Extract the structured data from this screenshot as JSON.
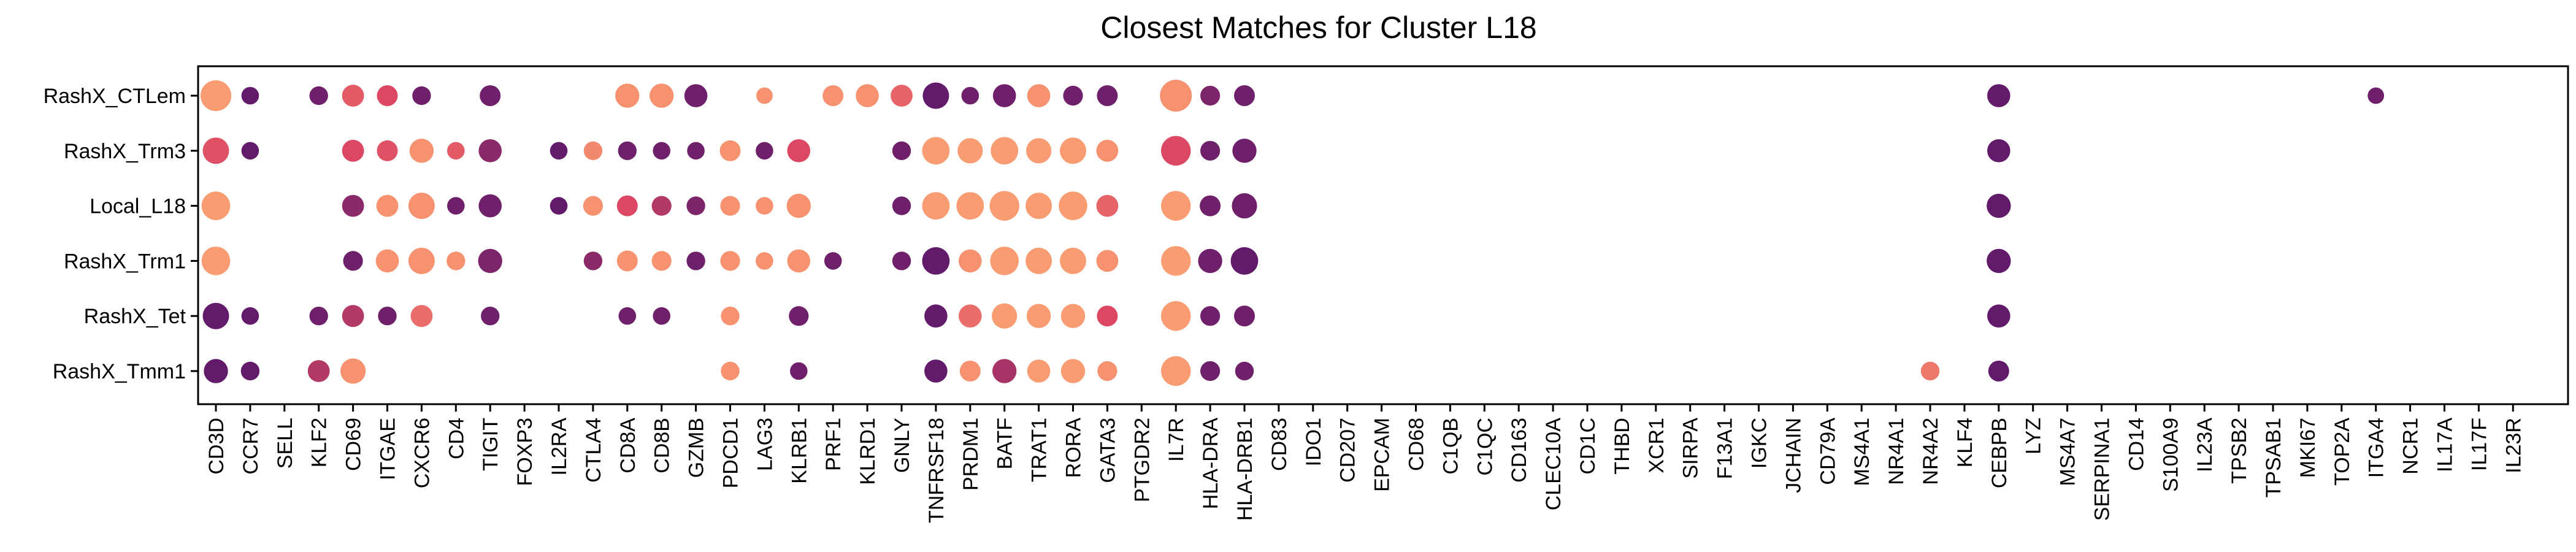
{
  "chart_data": {
    "type": "dot",
    "title": "Closest Matches for Cluster L18",
    "xlabel": "",
    "ylabel": "",
    "grid": false,
    "rows": [
      "RashX_CTLem",
      "RashX_Trm3",
      "Local_L18",
      "RashX_Trm1",
      "RashX_Tet",
      "RashX_Tmm1"
    ],
    "genes": [
      "CD3D",
      "CCR7",
      "SELL",
      "KLF2",
      "CD69",
      "ITGAE",
      "CXCR6",
      "CD4",
      "TIGIT",
      "FOXP3",
      "IL2RA",
      "CTLA4",
      "CD8A",
      "CD8B",
      "GZMB",
      "PDCD1",
      "LAG3",
      "KLRB1",
      "PRF1",
      "KLRD1",
      "GNLY",
      "TNFRSF18",
      "PRDM1",
      "BATF",
      "TRAT1",
      "RORA",
      "GATA3",
      "PTGDR2",
      "IL7R",
      "HLA-DRA",
      "HLA-DRB1",
      "CD83",
      "IDO1",
      "CD207",
      "EPCAM",
      "CD68",
      "C1QB",
      "C1QC",
      "CD163",
      "CLEC10A",
      "CD1C",
      "THBD",
      "XCR1",
      "SIRPA",
      "F13A1",
      "IGKC",
      "JCHAIN",
      "CD79A",
      "MS4A1",
      "NR4A1",
      "NR4A2",
      "KLF4",
      "CEBPB",
      "LYZ",
      "MS4A7",
      "SERPINA1",
      "CD14",
      "S100A9",
      "IL23A",
      "TPSB2",
      "TPSAB1",
      "MKI67",
      "TOP2A",
      "ITGA4",
      "NCR1",
      "IL17A",
      "IL17F",
      "IL23R"
    ],
    "size_scale": "relative 0-1",
    "color_scale": "0 = dark purple (#5b1a6e), 1 = light orange (#fca472)",
    "points": [
      {
        "row": "RashX_CTLem",
        "gene": "CD3D",
        "size": 0.95,
        "color": 0.95
      },
      {
        "row": "RashX_CTLem",
        "gene": "CCR7",
        "size": 0.35,
        "color": 0.05
      },
      {
        "row": "RashX_CTLem",
        "gene": "KLF2",
        "size": 0.4,
        "color": 0.1
      },
      {
        "row": "RashX_CTLem",
        "gene": "CD69",
        "size": 0.55,
        "color": 0.6
      },
      {
        "row": "RashX_CTLem",
        "gene": "ITGAE",
        "size": 0.5,
        "color": 0.5
      },
      {
        "row": "RashX_CTLem",
        "gene": "CXCR6",
        "size": 0.4,
        "color": 0.1
      },
      {
        "row": "RashX_CTLem",
        "gene": "TIGIT",
        "size": 0.5,
        "color": 0.1
      },
      {
        "row": "RashX_CTLem",
        "gene": "CD8A",
        "size": 0.65,
        "color": 0.9
      },
      {
        "row": "RashX_CTLem",
        "gene": "CD8B",
        "size": 0.65,
        "color": 0.9
      },
      {
        "row": "RashX_CTLem",
        "gene": "GZMB",
        "size": 0.6,
        "color": 0.1
      },
      {
        "row": "RashX_CTLem",
        "gene": "LAG3",
        "size": 0.3,
        "color": 0.9
      },
      {
        "row": "RashX_CTLem",
        "gene": "PRF1",
        "size": 0.5,
        "color": 0.9
      },
      {
        "row": "RashX_CTLem",
        "gene": "KLRD1",
        "size": 0.6,
        "color": 0.9
      },
      {
        "row": "RashX_CTLem",
        "gene": "GNLY",
        "size": 0.55,
        "color": 0.65
      },
      {
        "row": "RashX_CTLem",
        "gene": "TNFRSF18",
        "size": 0.75,
        "color": 0.05
      },
      {
        "row": "RashX_CTLem",
        "gene": "PRDM1",
        "size": 0.35,
        "color": 0.1
      },
      {
        "row": "RashX_CTLem",
        "gene": "BATF",
        "size": 0.6,
        "color": 0.1
      },
      {
        "row": "RashX_CTLem",
        "gene": "TRAT1",
        "size": 0.6,
        "color": 0.9
      },
      {
        "row": "RashX_CTLem",
        "gene": "RORA",
        "size": 0.45,
        "color": 0.1
      },
      {
        "row": "RashX_CTLem",
        "gene": "GATA3",
        "size": 0.5,
        "color": 0.1
      },
      {
        "row": "RashX_CTLem",
        "gene": "IL7R",
        "size": 1.0,
        "color": 0.9
      },
      {
        "row": "RashX_CTLem",
        "gene": "HLA-DRA",
        "size": 0.45,
        "color": 0.15
      },
      {
        "row": "RashX_CTLem",
        "gene": "HLA-DRB1",
        "size": 0.5,
        "color": 0.1
      },
      {
        "row": "RashX_CTLem",
        "gene": "CEBPB",
        "size": 0.6,
        "color": 0.05
      },
      {
        "row": "RashX_CTLem",
        "gene": "ITGA4",
        "size": 0.3,
        "color": 0.1
      },
      {
        "row": "RashX_Trm3",
        "gene": "CD3D",
        "size": 0.75,
        "color": 0.55
      },
      {
        "row": "RashX_Trm3",
        "gene": "CCR7",
        "size": 0.35,
        "color": 0.05
      },
      {
        "row": "RashX_Trm3",
        "gene": "CD69",
        "size": 0.55,
        "color": 0.5
      },
      {
        "row": "RashX_Trm3",
        "gene": "ITGAE",
        "size": 0.5,
        "color": 0.55
      },
      {
        "row": "RashX_Trm3",
        "gene": "CXCR6",
        "size": 0.65,
        "color": 0.9
      },
      {
        "row": "RashX_Trm3",
        "gene": "CD4",
        "size": 0.35,
        "color": 0.6
      },
      {
        "row": "RashX_Trm3",
        "gene": "TIGIT",
        "size": 0.6,
        "color": 0.2
      },
      {
        "row": "RashX_Trm3",
        "gene": "IL2RA",
        "size": 0.35,
        "color": 0.05
      },
      {
        "row": "RashX_Trm3",
        "gene": "CTLA4",
        "size": 0.4,
        "color": 0.85
      },
      {
        "row": "RashX_Trm3",
        "gene": "CD8A",
        "size": 0.4,
        "color": 0.1
      },
      {
        "row": "RashX_Trm3",
        "gene": "CD8B",
        "size": 0.35,
        "color": 0.1
      },
      {
        "row": "RashX_Trm3",
        "gene": "GZMB",
        "size": 0.35,
        "color": 0.1
      },
      {
        "row": "RashX_Trm3",
        "gene": "PDCD1",
        "size": 0.5,
        "color": 0.9
      },
      {
        "row": "RashX_Trm3",
        "gene": "LAG3",
        "size": 0.35,
        "color": 0.1
      },
      {
        "row": "RashX_Trm3",
        "gene": "KLRB1",
        "size": 0.6,
        "color": 0.5
      },
      {
        "row": "RashX_Trm3",
        "gene": "GNLY",
        "size": 0.4,
        "color": 0.1
      },
      {
        "row": "RashX_Trm3",
        "gene": "TNFRSF18",
        "size": 0.8,
        "color": 0.95
      },
      {
        "row": "RashX_Trm3",
        "gene": "PRDM1",
        "size": 0.7,
        "color": 0.95
      },
      {
        "row": "RashX_Trm3",
        "gene": "BATF",
        "size": 0.8,
        "color": 0.95
      },
      {
        "row": "RashX_Trm3",
        "gene": "TRAT1",
        "size": 0.7,
        "color": 0.95
      },
      {
        "row": "RashX_Trm3",
        "gene": "RORA",
        "size": 0.75,
        "color": 0.95
      },
      {
        "row": "RashX_Trm3",
        "gene": "GATA3",
        "size": 0.55,
        "color": 0.9
      },
      {
        "row": "RashX_Trm3",
        "gene": "IL7R",
        "size": 0.9,
        "color": 0.5
      },
      {
        "row": "RashX_Trm3",
        "gene": "HLA-DRA",
        "size": 0.45,
        "color": 0.1
      },
      {
        "row": "RashX_Trm3",
        "gene": "HLA-DRB1",
        "size": 0.65,
        "color": 0.1
      },
      {
        "row": "RashX_Trm3",
        "gene": "CEBPB",
        "size": 0.6,
        "color": 0.05
      },
      {
        "row": "Local_L18",
        "gene": "CD3D",
        "size": 0.85,
        "color": 0.95
      },
      {
        "row": "Local_L18",
        "gene": "CD69",
        "size": 0.55,
        "color": 0.2
      },
      {
        "row": "Local_L18",
        "gene": "ITGAE",
        "size": 0.55,
        "color": 0.9
      },
      {
        "row": "Local_L18",
        "gene": "CXCR6",
        "size": 0.75,
        "color": 0.9
      },
      {
        "row": "Local_L18",
        "gene": "CD4",
        "size": 0.35,
        "color": 0.1
      },
      {
        "row": "Local_L18",
        "gene": "TIGIT",
        "size": 0.6,
        "color": 0.1
      },
      {
        "row": "Local_L18",
        "gene": "IL2RA",
        "size": 0.35,
        "color": 0.05
      },
      {
        "row": "Local_L18",
        "gene": "CTLA4",
        "size": 0.45,
        "color": 0.9
      },
      {
        "row": "Local_L18",
        "gene": "CD8A",
        "size": 0.5,
        "color": 0.5
      },
      {
        "row": "Local_L18",
        "gene": "CD8B",
        "size": 0.45,
        "color": 0.35
      },
      {
        "row": "Local_L18",
        "gene": "GZMB",
        "size": 0.4,
        "color": 0.15
      },
      {
        "row": "Local_L18",
        "gene": "PDCD1",
        "size": 0.45,
        "color": 0.9
      },
      {
        "row": "Local_L18",
        "gene": "LAG3",
        "size": 0.35,
        "color": 0.9
      },
      {
        "row": "Local_L18",
        "gene": "KLRB1",
        "size": 0.65,
        "color": 0.9
      },
      {
        "row": "Local_L18",
        "gene": "GNLY",
        "size": 0.4,
        "color": 0.1
      },
      {
        "row": "Local_L18",
        "gene": "TNFRSF18",
        "size": 0.8,
        "color": 0.95
      },
      {
        "row": "Local_L18",
        "gene": "PRDM1",
        "size": 0.8,
        "color": 0.95
      },
      {
        "row": "Local_L18",
        "gene": "BATF",
        "size": 0.9,
        "color": 0.95
      },
      {
        "row": "Local_L18",
        "gene": "TRAT1",
        "size": 0.75,
        "color": 0.95
      },
      {
        "row": "Local_L18",
        "gene": "RORA",
        "size": 0.85,
        "color": 0.95
      },
      {
        "row": "Local_L18",
        "gene": "GATA3",
        "size": 0.55,
        "color": 0.65
      },
      {
        "row": "Local_L18",
        "gene": "IL7R",
        "size": 0.9,
        "color": 0.95
      },
      {
        "row": "Local_L18",
        "gene": "HLA-DRA",
        "size": 0.5,
        "color": 0.1
      },
      {
        "row": "Local_L18",
        "gene": "HLA-DRB1",
        "size": 0.7,
        "color": 0.1
      },
      {
        "row": "Local_L18",
        "gene": "CEBPB",
        "size": 0.65,
        "color": 0.05
      },
      {
        "row": "RashX_Trm1",
        "gene": "CD3D",
        "size": 0.85,
        "color": 0.95
      },
      {
        "row": "RashX_Trm1",
        "gene": "CD69",
        "size": 0.45,
        "color": 0.1
      },
      {
        "row": "RashX_Trm1",
        "gene": "ITGAE",
        "size": 0.6,
        "color": 0.9
      },
      {
        "row": "RashX_Trm1",
        "gene": "CXCR6",
        "size": 0.75,
        "color": 0.9
      },
      {
        "row": "RashX_Trm1",
        "gene": "CD4",
        "size": 0.4,
        "color": 0.9
      },
      {
        "row": "RashX_Trm1",
        "gene": "TIGIT",
        "size": 0.65,
        "color": 0.15
      },
      {
        "row": "RashX_Trm1",
        "gene": "CTLA4",
        "size": 0.4,
        "color": 0.2
      },
      {
        "row": "RashX_Trm1",
        "gene": "CD8A",
        "size": 0.5,
        "color": 0.9
      },
      {
        "row": "RashX_Trm1",
        "gene": "CD8B",
        "size": 0.45,
        "color": 0.9
      },
      {
        "row": "RashX_Trm1",
        "gene": "GZMB",
        "size": 0.4,
        "color": 0.1
      },
      {
        "row": "RashX_Trm1",
        "gene": "PDCD1",
        "size": 0.45,
        "color": 0.9
      },
      {
        "row": "RashX_Trm1",
        "gene": "LAG3",
        "size": 0.35,
        "color": 0.9
      },
      {
        "row": "RashX_Trm1",
        "gene": "KLRB1",
        "size": 0.6,
        "color": 0.9
      },
      {
        "row": "RashX_Trm1",
        "gene": "PRF1",
        "size": 0.35,
        "color": 0.1
      },
      {
        "row": "RashX_Trm1",
        "gene": "GNLY",
        "size": 0.4,
        "color": 0.1
      },
      {
        "row": "RashX_Trm1",
        "gene": "TNFRSF18",
        "size": 0.8,
        "color": 0.05
      },
      {
        "row": "RashX_Trm1",
        "gene": "PRDM1",
        "size": 0.6,
        "color": 0.9
      },
      {
        "row": "RashX_Trm1",
        "gene": "BATF",
        "size": 0.85,
        "color": 0.95
      },
      {
        "row": "RashX_Trm1",
        "gene": "TRAT1",
        "size": 0.75,
        "color": 0.95
      },
      {
        "row": "RashX_Trm1",
        "gene": "RORA",
        "size": 0.75,
        "color": 0.95
      },
      {
        "row": "RashX_Trm1",
        "gene": "GATA3",
        "size": 0.55,
        "color": 0.9
      },
      {
        "row": "RashX_Trm1",
        "gene": "IL7R",
        "size": 0.9,
        "color": 0.95
      },
      {
        "row": "RashX_Trm1",
        "gene": "HLA-DRA",
        "size": 0.65,
        "color": 0.1
      },
      {
        "row": "RashX_Trm1",
        "gene": "HLA-DRB1",
        "size": 0.8,
        "color": 0.05
      },
      {
        "row": "RashX_Trm1",
        "gene": "CEBPB",
        "size": 0.65,
        "color": 0.05
      },
      {
        "row": "RashX_Tet",
        "gene": "CD3D",
        "size": 0.75,
        "color": 0.05
      },
      {
        "row": "RashX_Tet",
        "gene": "CCR7",
        "size": 0.35,
        "color": 0.05
      },
      {
        "row": "RashX_Tet",
        "gene": "KLF2",
        "size": 0.4,
        "color": 0.1
      },
      {
        "row": "RashX_Tet",
        "gene": "CD69",
        "size": 0.55,
        "color": 0.35
      },
      {
        "row": "RashX_Tet",
        "gene": "ITGAE",
        "size": 0.4,
        "color": 0.1
      },
      {
        "row": "RashX_Tet",
        "gene": "CXCR6",
        "size": 0.55,
        "color": 0.7
      },
      {
        "row": "RashX_Tet",
        "gene": "TIGIT",
        "size": 0.4,
        "color": 0.1
      },
      {
        "row": "RashX_Tet",
        "gene": "CD8A",
        "size": 0.35,
        "color": 0.1
      },
      {
        "row": "RashX_Tet",
        "gene": "CD8B",
        "size": 0.35,
        "color": 0.1
      },
      {
        "row": "RashX_Tet",
        "gene": "PDCD1",
        "size": 0.4,
        "color": 0.9
      },
      {
        "row": "RashX_Tet",
        "gene": "KLRB1",
        "size": 0.45,
        "color": 0.1
      },
      {
        "row": "RashX_Tet",
        "gene": "TNFRSF18",
        "size": 0.6,
        "color": 0.05
      },
      {
        "row": "RashX_Tet",
        "gene": "PRDM1",
        "size": 0.6,
        "color": 0.7
      },
      {
        "row": "RashX_Tet",
        "gene": "BATF",
        "size": 0.7,
        "color": 0.95
      },
      {
        "row": "RashX_Tet",
        "gene": "TRAT1",
        "size": 0.65,
        "color": 0.95
      },
      {
        "row": "RashX_Tet",
        "gene": "RORA",
        "size": 0.65,
        "color": 0.95
      },
      {
        "row": "RashX_Tet",
        "gene": "GATA3",
        "size": 0.5,
        "color": 0.5
      },
      {
        "row": "RashX_Tet",
        "gene": "IL7R",
        "size": 0.9,
        "color": 0.95
      },
      {
        "row": "RashX_Tet",
        "gene": "HLA-DRA",
        "size": 0.45,
        "color": 0.1
      },
      {
        "row": "RashX_Tet",
        "gene": "HLA-DRB1",
        "size": 0.5,
        "color": 0.1
      },
      {
        "row": "RashX_Tet",
        "gene": "CEBPB",
        "size": 0.6,
        "color": 0.05
      },
      {
        "row": "RashX_Tmm1",
        "gene": "CD3D",
        "size": 0.65,
        "color": 0.05
      },
      {
        "row": "RashX_Tmm1",
        "gene": "CCR7",
        "size": 0.4,
        "color": 0.05
      },
      {
        "row": "RashX_Tmm1",
        "gene": "KLF2",
        "size": 0.55,
        "color": 0.35
      },
      {
        "row": "RashX_Tmm1",
        "gene": "CD69",
        "size": 0.7,
        "color": 0.9
      },
      {
        "row": "RashX_Tmm1",
        "gene": "PDCD1",
        "size": 0.4,
        "color": 0.9
      },
      {
        "row": "RashX_Tmm1",
        "gene": "KLRB1",
        "size": 0.35,
        "color": 0.1
      },
      {
        "row": "RashX_Tmm1",
        "gene": "TNFRSF18",
        "size": 0.6,
        "color": 0.05
      },
      {
        "row": "RashX_Tmm1",
        "gene": "PRDM1",
        "size": 0.5,
        "color": 0.9
      },
      {
        "row": "RashX_Tmm1",
        "gene": "BATF",
        "size": 0.65,
        "color": 0.3
      },
      {
        "row": "RashX_Tmm1",
        "gene": "TRAT1",
        "size": 0.6,
        "color": 0.95
      },
      {
        "row": "RashX_Tmm1",
        "gene": "RORA",
        "size": 0.65,
        "color": 0.95
      },
      {
        "row": "RashX_Tmm1",
        "gene": "GATA3",
        "size": 0.45,
        "color": 0.9
      },
      {
        "row": "RashX_Tmm1",
        "gene": "IL7R",
        "size": 0.9,
        "color": 0.95
      },
      {
        "row": "RashX_Tmm1",
        "gene": "HLA-DRA",
        "size": 0.45,
        "color": 0.1
      },
      {
        "row": "RashX_Tmm1",
        "gene": "HLA-DRB1",
        "size": 0.4,
        "color": 0.1
      },
      {
        "row": "RashX_Tmm1",
        "gene": "NR4A2",
        "size": 0.4,
        "color": 0.75
      },
      {
        "row": "RashX_Tmm1",
        "gene": "CEBPB",
        "size": 0.5,
        "color": 0.05
      }
    ]
  }
}
